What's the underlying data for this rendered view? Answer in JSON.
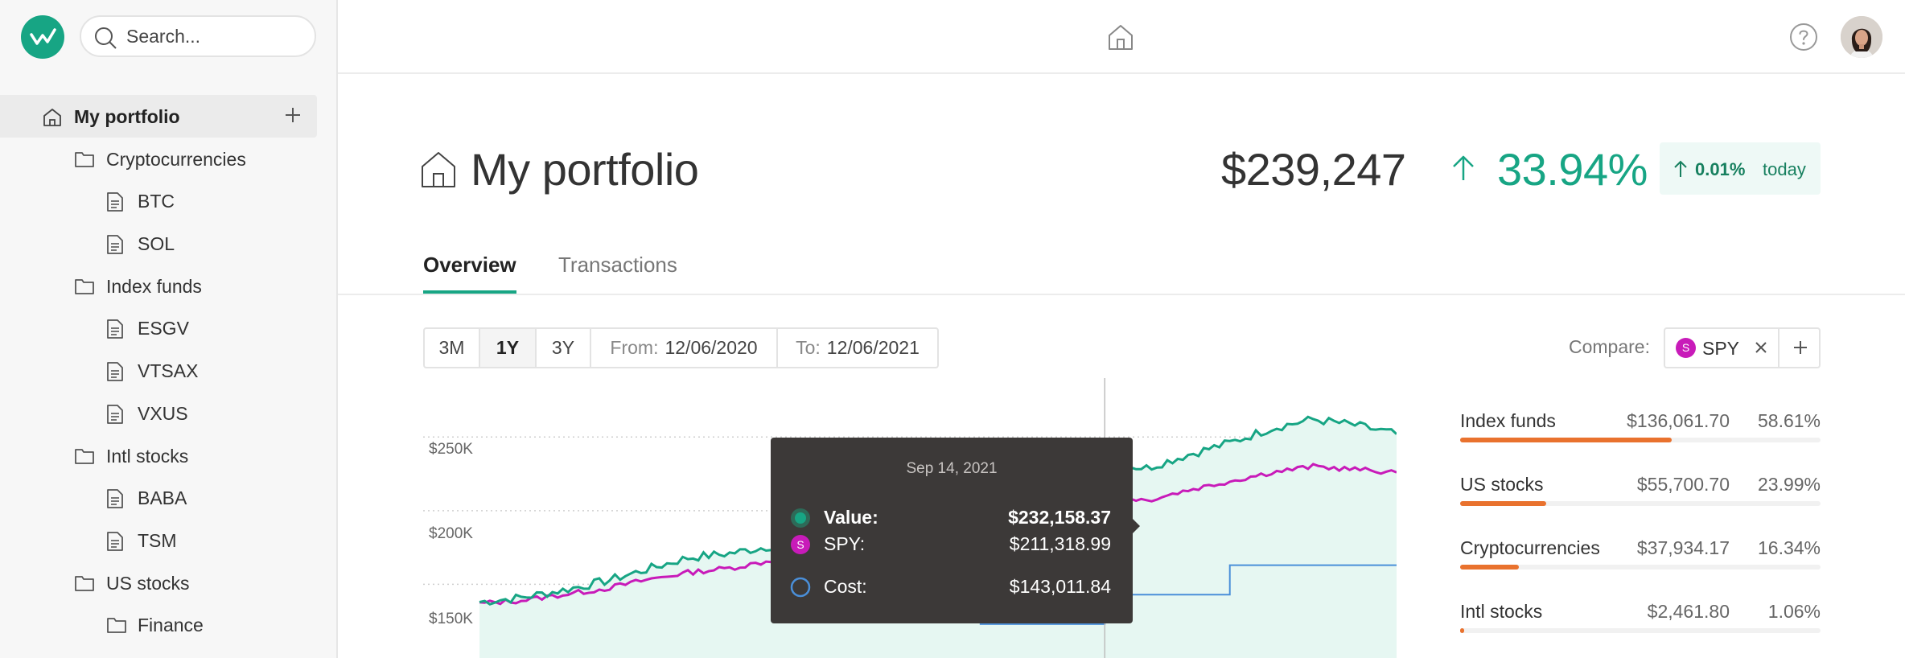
{
  "sidebar": {
    "search_placeholder": "Search...",
    "items": [
      {
        "label": "My portfolio",
        "icon": "home-icon",
        "level": 0,
        "active": true
      },
      {
        "label": "Cryptocurrencies",
        "icon": "folder-icon",
        "level": 1
      },
      {
        "label": "BTC",
        "icon": "document-icon",
        "level": 2
      },
      {
        "label": "SOL",
        "icon": "document-icon",
        "level": 2
      },
      {
        "label": "Index funds",
        "icon": "folder-icon",
        "level": 1
      },
      {
        "label": "ESGV",
        "icon": "document-icon",
        "level": 2
      },
      {
        "label": "VTSAX",
        "icon": "document-icon",
        "level": 2
      },
      {
        "label": "VXUS",
        "icon": "document-icon",
        "level": 2
      },
      {
        "label": "Intl stocks",
        "icon": "folder-icon",
        "level": 1
      },
      {
        "label": "BABA",
        "icon": "document-icon",
        "level": 2
      },
      {
        "label": "TSM",
        "icon": "document-icon",
        "level": 2
      },
      {
        "label": "US stocks",
        "icon": "folder-icon",
        "level": 1
      },
      {
        "label": "Finance",
        "icon": "folder-icon",
        "level": 2
      }
    ]
  },
  "header": {
    "title": "My portfolio",
    "total_value": "$239,247",
    "gain_pct": "33.94%",
    "today_pct": "0.01%",
    "today_label": "today"
  },
  "tabs": [
    {
      "label": "Overview",
      "active": true
    },
    {
      "label": "Transactions",
      "active": false
    }
  ],
  "range": {
    "options": [
      "3M",
      "1Y",
      "3Y"
    ],
    "selected": "1Y",
    "from_label": "From:",
    "from_value": "12/06/2020",
    "to_label": "To:",
    "to_value": "12/06/2021"
  },
  "compare": {
    "label": "Compare:",
    "badge": "S",
    "symbol": "SPY"
  },
  "chart_data": {
    "type": "line",
    "y_ticks": [
      "$250K",
      "$200K",
      "$150K"
    ],
    "series": [
      {
        "name": "Value",
        "color": "#17a584",
        "values": [
          138000,
          141000,
          146000,
          152000,
          160000,
          168000,
          171000,
          176000,
          182000,
          188000,
          194000,
          202000,
          212000,
          220000,
          226000,
          232158,
          229000,
          238000,
          246000,
          256000,
          262000,
          258000,
          252000
        ]
      },
      {
        "name": "SPY",
        "color": "#c81bb9",
        "values": [
          137000,
          139000,
          143000,
          147000,
          153000,
          158000,
          161000,
          166000,
          171000,
          176000,
          181000,
          187000,
          193000,
          199000,
          205000,
          211319,
          207000,
          214000,
          220000,
          226000,
          230000,
          228000,
          226000
        ]
      },
      {
        "name": "Cost",
        "color": "#4a8fd9",
        "values": [
          null,
          null,
          null,
          null,
          null,
          null,
          null,
          null,
          null,
          null,
          null,
          null,
          123000,
          123000,
          123000,
          143012,
          143012,
          143012,
          163000,
          163000,
          163000,
          163000,
          163000
        ]
      }
    ],
    "ylim": [
      100000,
      290000
    ]
  },
  "tooltip": {
    "date": "Sep 14, 2021",
    "value_label": "Value:",
    "value": "$232,158.37",
    "spy_label": "SPY:",
    "spy_value": "$211,318.99",
    "cost_label": "Cost:",
    "cost_value": "$143,011.84"
  },
  "allocation": [
    {
      "name": "Index funds",
      "value": "$136,061.70",
      "pct": "58.61%",
      "share": 0.5861
    },
    {
      "name": "US stocks",
      "value": "$55,700.70",
      "pct": "23.99%",
      "share": 0.2399
    },
    {
      "name": "Cryptocurrencies",
      "value": "$37,934.17",
      "pct": "16.34%",
      "share": 0.1634
    },
    {
      "name": "Intl stocks",
      "value": "$2,461.80",
      "pct": "1.06%",
      "share": 0.0106
    }
  ],
  "colors": {
    "accent": "#17a584",
    "spy": "#c81bb9",
    "cost": "#4a8fd9",
    "bar": "#e9722e"
  }
}
